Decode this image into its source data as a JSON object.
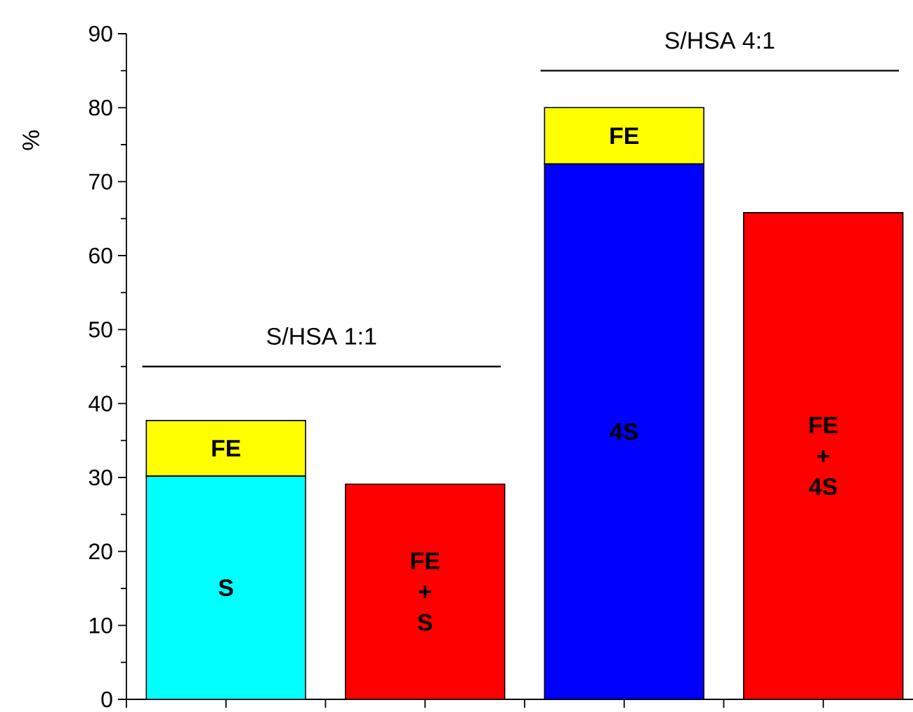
{
  "chart_data": {
    "type": "bar",
    "stacked": true,
    "ylabel": "%",
    "categories": [
      null,
      null,
      null,
      null
    ],
    "series": [
      {
        "name": "S",
        "color": "#00ffff",
        "values": [
          30.2,
          null,
          null,
          null
        ]
      },
      {
        "name": "FE + S",
        "color": "#ff0000",
        "values": [
          null,
          29.1,
          null,
          null
        ]
      },
      {
        "name": "4S",
        "color": "#0000ff",
        "values": [
          null,
          null,
          72.4,
          null
        ]
      },
      {
        "name": "FE + 4S",
        "color": "#ff0000",
        "values": [
          null,
          null,
          null,
          65.8
        ]
      },
      {
        "name": "FE",
        "color": "#ffff00",
        "values": [
          7.5,
          null,
          7.6,
          null
        ]
      }
    ],
    "ylim": [
      0,
      90
    ],
    "yticks": [
      0,
      10,
      20,
      30,
      40,
      50,
      60,
      70,
      80,
      90
    ],
    "ref_lines": [
      {
        "axis": "y",
        "value": 45,
        "color": "#000000"
      },
      {
        "axis": "y",
        "value": 85,
        "color": "#000000"
      }
    ],
    "annotations": [
      {
        "text": "S/HSA 1:1",
        "y": 45
      },
      {
        "text": "S/HSA 4:1",
        "y": 85
      }
    ]
  }
}
